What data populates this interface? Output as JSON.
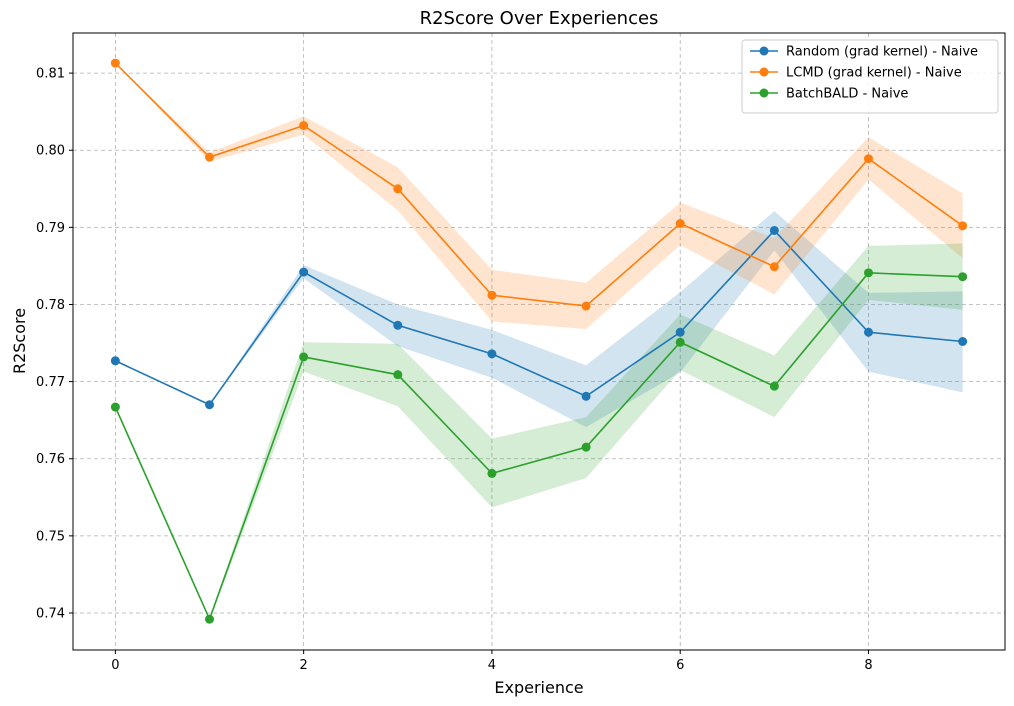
{
  "chart_data": {
    "type": "line",
    "title": "R2Score Over Experiences",
    "xlabel": "Experience",
    "ylabel": "R2Score",
    "x": [
      0,
      1,
      2,
      3,
      4,
      5,
      6,
      7,
      8,
      9
    ],
    "xlim": [
      -0.45,
      9.45
    ],
    "ylim": [
      0.7352,
      0.8152
    ],
    "xticks": [
      0,
      2,
      4,
      6,
      8
    ],
    "yticks": [
      0.74,
      0.75,
      0.76,
      0.77,
      0.78,
      0.79,
      0.8,
      0.81
    ],
    "ytick_labels": [
      "0.74",
      "0.75",
      "0.76",
      "0.77",
      "0.78",
      "0.79",
      "0.80",
      "0.81"
    ],
    "grid": true,
    "legend_position": "top-right",
    "series": [
      {
        "name": "Random (grad kernel) - Naive",
        "color": "#1f77b4",
        "values": [
          0.7727,
          0.767,
          0.7842,
          0.7773,
          0.7736,
          0.7681,
          0.7764,
          0.7896,
          0.7764,
          0.7752
        ],
        "lower": [
          0.7727,
          0.767,
          0.7834,
          0.7746,
          0.7705,
          0.7641,
          0.7712,
          0.787,
          0.7713,
          0.7686
        ],
        "upper": [
          0.7727,
          0.767,
          0.7851,
          0.78,
          0.7767,
          0.7721,
          0.7816,
          0.7921,
          0.7815,
          0.7817
        ]
      },
      {
        "name": "LCMD (grad kernel) - Naive",
        "color": "#ff7f0e",
        "values": [
          0.8113,
          0.7991,
          0.8032,
          0.795,
          0.7812,
          0.7798,
          0.7905,
          0.7849,
          0.7989,
          0.7902
        ],
        "lower": [
          0.8113,
          0.7985,
          0.802,
          0.7922,
          0.7778,
          0.7768,
          0.7877,
          0.7813,
          0.7962,
          0.786
        ],
        "upper": [
          0.8113,
          0.7997,
          0.8044,
          0.7978,
          0.7845,
          0.7828,
          0.7932,
          0.7886,
          0.8017,
          0.7944
        ]
      },
      {
        "name": "BatchBALD - Naive",
        "color": "#2ca02c",
        "values": [
          0.7667,
          0.7392,
          0.7732,
          0.7709,
          0.7581,
          0.7615,
          0.7751,
          0.7694,
          0.7841,
          0.7836
        ],
        "lower": [
          0.7667,
          0.739,
          0.7713,
          0.7668,
          0.7537,
          0.7575,
          0.7715,
          0.7654,
          0.7806,
          0.7793
        ],
        "upper": [
          0.7667,
          0.7394,
          0.7751,
          0.7749,
          0.7626,
          0.7654,
          0.7787,
          0.7734,
          0.7876,
          0.7879
        ]
      }
    ]
  }
}
